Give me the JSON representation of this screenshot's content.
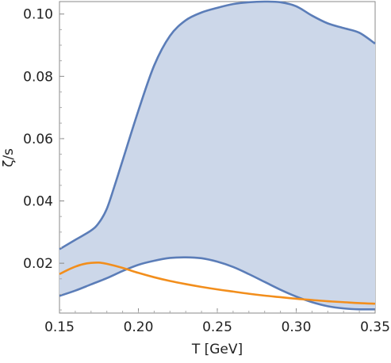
{
  "chart_data": {
    "type": "area",
    "xlabel": "T [GeV]",
    "ylabel": "ζ/s",
    "xlim": [
      0.15,
      0.35
    ],
    "ylim": [
      0.004,
      0.104
    ],
    "x_ticks": [
      "0.15",
      "0.20",
      "0.25",
      "0.30",
      "0.35"
    ],
    "y_ticks": [
      "0.02",
      "0.04",
      "0.06",
      "0.08",
      "0.10"
    ],
    "grid": false,
    "legend": "none",
    "colors": {
      "band_fill": "#ccd7e9",
      "band_edge": "#5b7db8",
      "curve": "#f28e1c",
      "frame": "#888888"
    },
    "series": [
      {
        "role": "band-upper",
        "points": [
          [
            0.15,
            0.0245
          ],
          [
            0.16,
            0.0275
          ],
          [
            0.17,
            0.0305
          ],
          [
            0.175,
            0.033
          ],
          [
            0.18,
            0.0375
          ],
          [
            0.185,
            0.045
          ],
          [
            0.19,
            0.053
          ],
          [
            0.2,
            0.069
          ],
          [
            0.21,
            0.0835
          ],
          [
            0.22,
            0.093
          ],
          [
            0.23,
            0.098
          ],
          [
            0.24,
            0.1005
          ],
          [
            0.25,
            0.102
          ],
          [
            0.26,
            0.1032
          ],
          [
            0.27,
            0.1038
          ],
          [
            0.28,
            0.104
          ],
          [
            0.29,
            0.1038
          ],
          [
            0.3,
            0.1025
          ],
          [
            0.31,
            0.0995
          ],
          [
            0.32,
            0.097
          ],
          [
            0.33,
            0.0955
          ],
          [
            0.34,
            0.094
          ],
          [
            0.35,
            0.0905
          ]
        ]
      },
      {
        "role": "band-lower",
        "points": [
          [
            0.15,
            0.0095
          ],
          [
            0.16,
            0.0112
          ],
          [
            0.17,
            0.0132
          ],
          [
            0.18,
            0.0152
          ],
          [
            0.19,
            0.0175
          ],
          [
            0.2,
            0.0195
          ],
          [
            0.21,
            0.0208
          ],
          [
            0.22,
            0.0217
          ],
          [
            0.23,
            0.0219
          ],
          [
            0.24,
            0.0216
          ],
          [
            0.25,
            0.0205
          ],
          [
            0.26,
            0.0188
          ],
          [
            0.27,
            0.0165
          ],
          [
            0.28,
            0.014
          ],
          [
            0.29,
            0.0115
          ],
          [
            0.3,
            0.0093
          ],
          [
            0.31,
            0.0075
          ],
          [
            0.32,
            0.0062
          ],
          [
            0.33,
            0.0055
          ],
          [
            0.34,
            0.0052
          ],
          [
            0.35,
            0.0052
          ]
        ]
      },
      {
        "role": "curve",
        "points": [
          [
            0.15,
            0.0165
          ],
          [
            0.155,
            0.0178
          ],
          [
            0.16,
            0.0189
          ],
          [
            0.165,
            0.0197
          ],
          [
            0.17,
            0.0201
          ],
          [
            0.175,
            0.0202
          ],
          [
            0.18,
            0.0198
          ],
          [
            0.19,
            0.0185
          ],
          [
            0.2,
            0.0169
          ],
          [
            0.21,
            0.0155
          ],
          [
            0.22,
            0.0143
          ],
          [
            0.23,
            0.0133
          ],
          [
            0.24,
            0.0124
          ],
          [
            0.25,
            0.0116
          ],
          [
            0.26,
            0.0109
          ],
          [
            0.27,
            0.0102
          ],
          [
            0.28,
            0.0096
          ],
          [
            0.29,
            0.0091
          ],
          [
            0.3,
            0.0086
          ],
          [
            0.31,
            0.0082
          ],
          [
            0.32,
            0.0078
          ],
          [
            0.33,
            0.0075
          ],
          [
            0.34,
            0.0072
          ],
          [
            0.35,
            0.007
          ]
        ]
      }
    ]
  }
}
